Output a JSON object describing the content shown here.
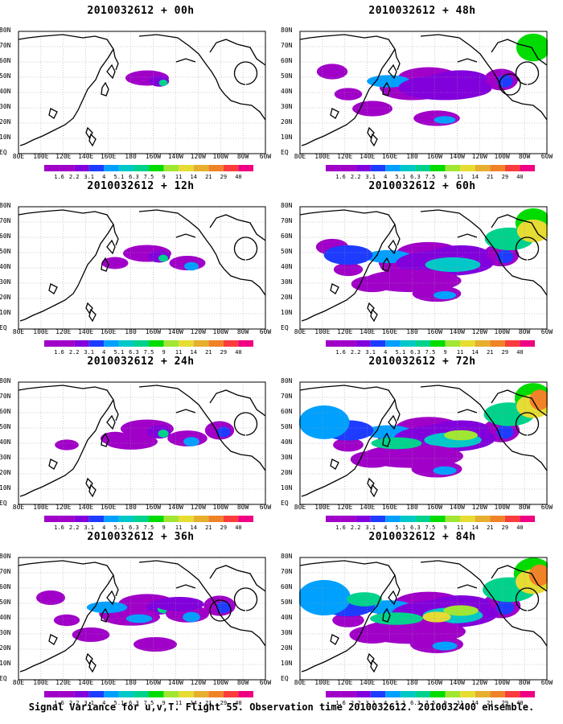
{
  "panels": [
    {
      "title": "2010032612 + 00h",
      "level": 0.15,
      "circle": false
    },
    {
      "title": "2010032612 + 12h",
      "level": 0.3,
      "circle": false
    },
    {
      "title": "2010032612 + 24h",
      "level": 0.45,
      "circle": false
    },
    {
      "title": "2010032612 + 36h",
      "level": 0.6,
      "circle": true
    },
    {
      "title": "2010032612 + 48h",
      "level": 0.72,
      "circle": true
    },
    {
      "title": "2010032612 + 60h",
      "level": 0.82,
      "circle": false
    },
    {
      "title": "2010032612 + 72h",
      "level": 0.9,
      "circle": false
    },
    {
      "title": "2010032612 + 84h",
      "level": 1.0,
      "circle": false
    }
  ],
  "lat_labels": [
    "80N",
    "70N",
    "60N",
    "50N",
    "40N",
    "30N",
    "20N",
    "10N",
    "EQ"
  ],
  "lon_labels": [
    "80E",
    "100E",
    "120E",
    "140E",
    "160E",
    "180",
    "160W",
    "140W",
    "120W",
    "100W",
    "80W",
    "60W"
  ],
  "colorbar": {
    "labels": [
      "1.6",
      "2.2",
      "3.1",
      "4",
      "5.1",
      "6.3",
      "7.5",
      "9",
      "11",
      "14",
      "21",
      "29",
      "40"
    ],
    "colors": [
      "#a000c8",
      "#8200dc",
      "#1e3cff",
      "#00a0ff",
      "#00c8c8",
      "#00d28c",
      "#00dc00",
      "#a0e632",
      "#e6dc32",
      "#e6af2d",
      "#f08228",
      "#fa3c3c",
      "#f00082"
    ]
  },
  "footer": "Signal Variance for u,v,T. Flight 55. Observation time 2010032612. 2010032400 ensemble."
}
